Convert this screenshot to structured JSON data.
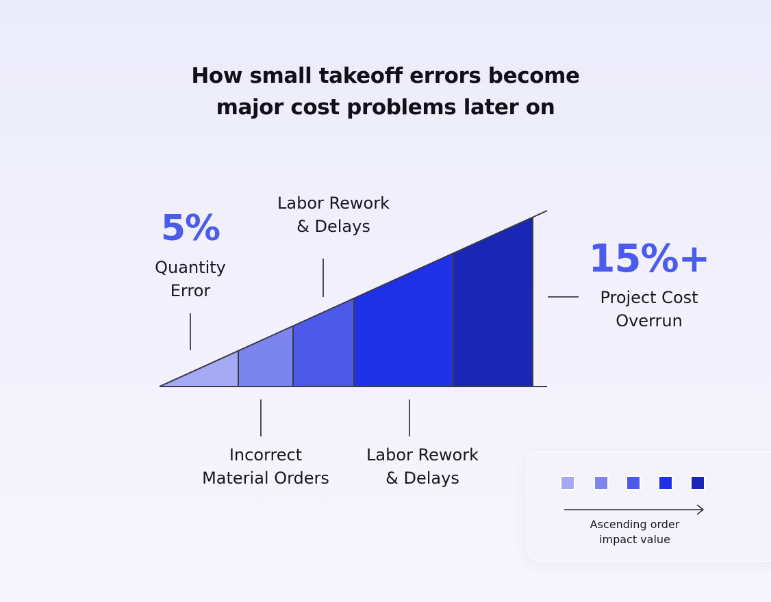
{
  "title": {
    "line1": "How small takeoff errors become",
    "line2": "major cost problems later on"
  },
  "start": {
    "percent": "5%",
    "label_line1": "Quantity",
    "label_line2": "Error"
  },
  "end": {
    "percent": "15%+",
    "label_line1": "Project Cost",
    "label_line2": "Overrun"
  },
  "callouts": {
    "top": {
      "line1": "Labor Rework",
      "line2": "& Delays"
    },
    "bottom_left": {
      "line1": "Incorrect",
      "line2": "Material Orders"
    },
    "bottom_right": {
      "line1": "Labor Rework",
      "line2": "& Delays"
    }
  },
  "segments": [
    {
      "color": "#a6a9f3"
    },
    {
      "color": "#7c84ee"
    },
    {
      "color": "#4d5ae8"
    },
    {
      "color": "#1e31e6"
    },
    {
      "color": "#1a27b4"
    }
  ],
  "legend": {
    "colors": [
      "#a6a9f3",
      "#7c84ee",
      "#4d5ae8",
      "#1e31e6",
      "#1a27b4"
    ],
    "text_line1": "Ascending order",
    "text_line2": "impact value",
    "arrow_icon": "arrow-right-icon"
  }
}
